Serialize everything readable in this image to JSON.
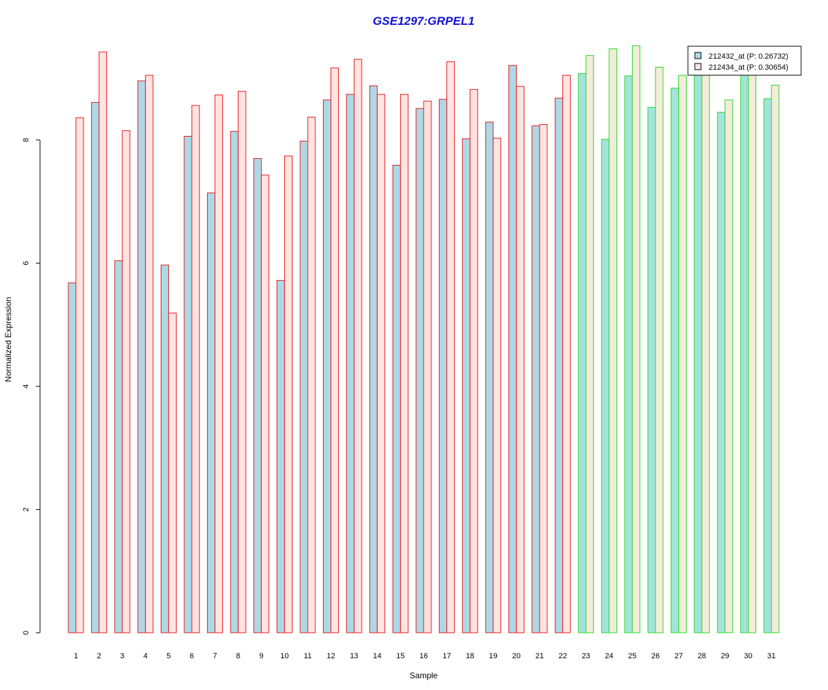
{
  "chart_data": {
    "type": "bar",
    "title": "GSE1297:GRPEL1",
    "xlabel": "Sample",
    "ylabel": "Normalized Expression",
    "ylim": [
      0,
      9.6
    ],
    "yticks": [
      0,
      2,
      4,
      6,
      8
    ],
    "grid": false,
    "legend_position": "top-right",
    "categories": [
      "1",
      "2",
      "3",
      "4",
      "5",
      "6",
      "7",
      "8",
      "9",
      "10",
      "11",
      "12",
      "13",
      "14",
      "15",
      "16",
      "17",
      "18",
      "19",
      "20",
      "21",
      "22",
      "23",
      "24",
      "25",
      "26",
      "27",
      "28",
      "29",
      "30",
      "31"
    ],
    "series": [
      {
        "name": "212432_at (P: 0.26732)",
        "fill": "#add8e6",
        "fill_alt": "#a6e2dd",
        "values": [
          5.68,
          8.61,
          6.04,
          8.96,
          5.97,
          8.06,
          7.14,
          8.14,
          7.7,
          5.72,
          7.98,
          8.65,
          8.74,
          8.88,
          7.59,
          8.51,
          8.66,
          8.02,
          8.29,
          9.21,
          8.23,
          8.68,
          9.08,
          8.01,
          9.04,
          8.53,
          8.84,
          9.05,
          8.45,
          9.06,
          8.67
        ]
      },
      {
        "name": "212434_at (P: 0.30654)",
        "fill": "#ffe4e1",
        "fill_alt": "#f5ebdc",
        "values": [
          8.36,
          9.43,
          8.15,
          9.05,
          5.19,
          8.56,
          8.73,
          8.79,
          7.43,
          7.74,
          8.37,
          9.17,
          9.31,
          8.74,
          8.74,
          8.63,
          9.27,
          8.82,
          8.03,
          8.87,
          8.25,
          9.05,
          9.37,
          9.48,
          9.53,
          9.18,
          9.05,
          9.05,
          8.65,
          9.07,
          8.89
        ]
      }
    ],
    "group_border_colors": [
      "#e41a1c",
      "#22dd22"
    ],
    "group_of_sample": [
      0,
      0,
      0,
      0,
      0,
      0,
      0,
      0,
      0,
      0,
      0,
      0,
      0,
      0,
      0,
      0,
      0,
      0,
      0,
      0,
      0,
      0,
      1,
      1,
      1,
      1,
      1,
      1,
      1,
      1,
      1
    ]
  }
}
